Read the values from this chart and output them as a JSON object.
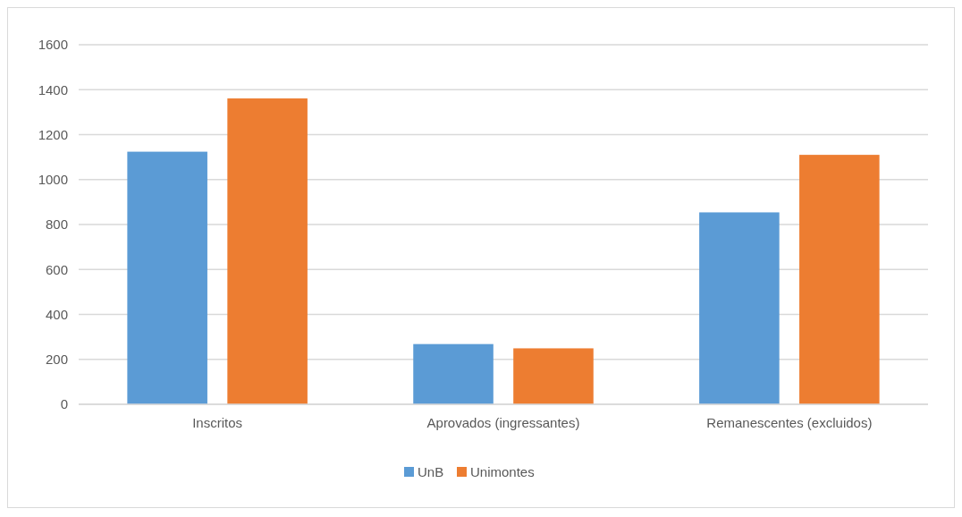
{
  "chart_data": {
    "type": "bar",
    "categories": [
      "Inscritos",
      "Aprovados (ingressantes)",
      "Remanescentes (excluidos)"
    ],
    "series": [
      {
        "name": "UnB",
        "color": "#5b9bd5",
        "values": [
          1124,
          268,
          854
        ]
      },
      {
        "name": "Unimontes",
        "color": "#ed7d31",
        "values": [
          1361,
          249,
          1110
        ]
      }
    ],
    "ylim": [
      0,
      1600
    ],
    "yticks": [
      0,
      200,
      400,
      600,
      800,
      1000,
      1200,
      1400,
      1600
    ],
    "grid": "y",
    "legend": "bottom"
  }
}
